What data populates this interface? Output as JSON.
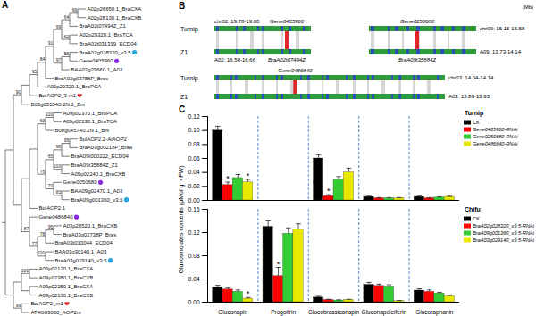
{
  "panel_labels": [
    "A",
    "B",
    "C"
  ],
  "tree": {
    "children": [
      {
        "children": [
          {
            "support": 90,
            "children": [
              {
                "children": [
                  {
                    "support": 95,
                    "children": [
                      {
                        "support": 84,
                        "children": [
                          {
                            "support": 91,
                            "children": [
                              {
                                "support": 99,
                                "children": [
                                  {
                                    "support": 64,
                                    "children": [
                                      {
                                        "support": 66,
                                        "children": [
                                          "A02p26650.1_BraCXA",
                                          "A02p28130.1_BraCXB"
                                        ]
                                      },
                                      "BraA02t07494Z_Z1"
                                    ]
                                  },
                                  {
                                    "support": 62,
                                    "children": [
                                      "A02p29320.1_BraTCA",
                                      "BraA02t031319_ECD04"
                                    ]
                                  }
                                ]
                              },
                              {
                                "support": 97,
                                "children": [
                                  {
                                    "support": 55,
                                    "children": [
                                      {
                                        "label": "BraA02g028320_v3.5",
                                        "marker": "circle",
                                        "color": "#29a3e0"
                                      },
                                      {
                                        "label": "Gene0405960",
                                        "marker": "circle",
                                        "color": "#8a2be2"
                                      }
                                    ]
                                  },
                                  "BAA02g29660.1_A03"
                                ]
                              }
                            ]
                          },
                          "BraA02g02786P_Bras"
                        ]
                      },
                      "A02p29320.1_BraPCA"
                    ]
                  },
                  {
                    "label": "BolAOP2_3-m1",
                    "marker": "heart",
                    "color": "#e0282c"
                  }
                ]
              },
              "B05g055540.2N.1_Bni"
            ]
          },
          {
            "children": [
              {
                "children": [
                  {
                    "children": [
                      {
                        "support": 63,
                        "children": [
                          {
                            "support": 100,
                            "children": [
                              "A09p02370.1_BraPCA",
                              "A09p02130.1_BraTCA"
                            ]
                          },
                          "B08g045740.2N.1_Bni"
                        ]
                      },
                      {
                        "support": 76,
                        "children": [
                          {
                            "support": 65,
                            "children": [
                              {
                                "support": 96,
                                "children": [
                                  {
                                    "support": 95,
                                    "children": [
                                      "BolAOP2.2-AtAOP2",
                                      "BraA09g00218P_Bras"
                                    ]
                                  },
                                  "BraA09t000222_ECD04"
                                ]
                              },
                              {
                                "support": 100,
                                "children": [
                                  "BraA09t35884Z_Z1",
                                  "A09p02240.1_BraCXB"
                                ]
                              }
                            ]
                          },
                          {
                            "support": 70,
                            "children": [
                              {
                                "label": "Gene0250680",
                                "marker": "circle",
                                "color": "#8a2be2"
                              },
                              {
                                "support": 83,
                                "children": [
                                  "BAA09g02470.1_A03",
                                  {
                                    "label": "BraA09g001360_v3.5",
                                    "marker": "circle",
                                    "color": "#29a3e0"
                                  }
                                ]
                              }
                            ]
                          }
                        ]
                      }
                    ]
                  },
                  "BolAOP2.1"
                ]
              },
              {
                "support": 87,
                "children": [
                  {
                    "label": "Gene0486840",
                    "marker": "circle",
                    "color": "#8a2be2"
                  },
                  {
                    "support": 77,
                    "children": [
                      {
                        "support": 78,
                        "children": [
                          {
                            "support": 95,
                            "children": [
                              "A03p28520.1_BraCXB",
                              "BraA03g02738P_Bras"
                            ]
                          },
                          "BraA03t010044_ECD04"
                        ]
                      },
                      {
                        "support": 100,
                        "children": [
                          "BAA03g30140.1_A03",
                          {
                            "label": "BraA03g029140_v3.5",
                            "marker": "circle",
                            "color": "#29a3e0"
                          }
                        ]
                      }
                    ]
                  }
                ]
              }
            ]
          }
        ]
      },
      {
        "children": [
          {
            "children": [
              {
                "support": 100,
                "children": [
                  "A09p02120.1_BraCXA",
                  "A09p02380.1_BraCXB"
                ]
              },
              {
                "children": [
                  "A09p02250.1_BraCXA",
                  "A09p02130.1_BraCXB"
                ]
              }
            ]
          },
          {
            "support": 99,
            "children": [
              {
                "label": "BolAOP2_m1",
                "marker": "heart",
                "color": "#e0282c"
              },
              "AT4G03060_AOP2m"
            ]
          }
        ]
      }
    ]
  },
  "synteny": {
    "unit": "(Mb)",
    "rows": [
      {
        "genome_labels": [
          "Turnip",
          "Z1"
        ],
        "blocks": [
          {
            "top_region": "chr02: 19.78-19.88",
            "top_gene": "Gene0405960",
            "bottom_region": "A02: 16.58-16.66",
            "bottom_gene": "BraA02t07494Z"
          },
          {
            "top_region": "chr09: 15.16-15.58",
            "top_gene": "Gene0250680",
            "bottom_region": "A09: 13.73-14.14",
            "bottom_gene": "BraA09t35884Z"
          }
        ]
      },
      {
        "genome_labels": [
          "Turnip",
          "Z1"
        ],
        "blocks": [
          {
            "top_region": "chr03: 14.04-14.14",
            "top_gene": "Gene0486840",
            "bottom_region": "A03: 13.89-13.93"
          }
        ]
      }
    ]
  },
  "chart_data": [
    {
      "type": "bar",
      "title": "Turnip",
      "y_label": "Glucosinolates contents (μMol g⁻¹ FW)",
      "categories": [
        "Gluconapin",
        "Progoitrin",
        "Glucobrassicanapin",
        "Gluconapoleiferin",
        "Glucoraphanin"
      ],
      "series": [
        {
          "name": "CK",
          "color": "#000000",
          "values": [
            0.1,
            0,
            0.06,
            0.005,
            0.005
          ],
          "errors": [
            0.006,
            0,
            0.005,
            0.001,
            0.001
          ]
        },
        {
          "name": "Gene0405960-RNAi",
          "color": "#ff0000",
          "values": [
            0.022,
            0,
            0.006,
            0.003,
            0.003
          ],
          "errors": [
            0.004,
            0,
            0.002,
            0.001,
            0.001
          ]
        },
        {
          "name": "Gene0250680-RNAi",
          "color": "#33cc33",
          "values": [
            0.032,
            0,
            0.03,
            0.003,
            0.004
          ],
          "errors": [
            0.005,
            0,
            0.004,
            0.001,
            0.001
          ]
        },
        {
          "name": "Gene0486840-RNAi",
          "color": "#e8e800",
          "values": [
            0.026,
            0,
            0.04,
            0.003,
            0.005
          ],
          "errors": [
            0.004,
            0,
            0.006,
            0.001,
            0.001
          ]
        }
      ],
      "ylim": [
        0,
        0.12
      ],
      "yticks": [
        {
          "value": 0,
          "label": "0.00"
        },
        {
          "value": 0.02,
          "label": "0.02"
        },
        {
          "value": 0.04,
          "label": "0.04"
        },
        {
          "value": 0.06,
          "label": "0.06"
        },
        {
          "value": 0.08,
          "label": "0.08"
        },
        {
          "value": 0.1,
          "label": "0.10"
        },
        {
          "value": 0.12,
          "label": "0.12"
        }
      ],
      "tick_labels": "y",
      "legend": "right",
      "annotations": [
        {
          "category": "Gluconapin",
          "series": "Gene0405960-RNAi",
          "text": "*"
        },
        {
          "category": "Gluconapin",
          "series": "Gene0486840-RNAi",
          "text": "*"
        },
        {
          "category": "Glucobrassicanapin",
          "series": "Gene0405960-RNAi",
          "text": "*"
        }
      ]
    },
    {
      "type": "bar",
      "title": "Chifu",
      "categories": [
        "Gluconapin",
        "Progoitrin",
        "Glucobrassicanapin",
        "Gluconapoleiferin",
        "Glucoraphanin"
      ],
      "series": [
        {
          "name": "CK",
          "color": "#000000",
          "values": [
            0.025,
            0.13,
            0.008,
            0.03,
            0.02
          ],
          "errors": [
            0.004,
            0.01,
            0.002,
            0.004,
            0.003
          ]
        },
        {
          "name": "BraA02g028320_v3.5-RNAi",
          "color": "#ff0000",
          "values": [
            0.022,
            0.045,
            0.004,
            0.028,
            0.018
          ],
          "errors": [
            0.003,
            0.015,
            0.001,
            0.003,
            0.003
          ]
        },
        {
          "name": "BraA09g001360_v3.5-RNAi",
          "color": "#33cc33",
          "values": [
            0.018,
            0.118,
            0.003,
            0.027,
            0.015
          ],
          "errors": [
            0.003,
            0.01,
            0.001,
            0.003,
            0.002
          ]
        },
        {
          "name": "BraA03g029140_v3.5-RNAi",
          "color": "#e8e800",
          "values": [
            0.006,
            0.125,
            0.004,
            0.002,
            0.01
          ],
          "errors": [
            0.002,
            0.01,
            0.001,
            0.001,
            0.002
          ]
        }
      ],
      "ylim": [
        0,
        0.16
      ],
      "yticks": [
        {
          "value": 0,
          "label": "0.00"
        },
        {
          "value": 0.04,
          "label": "0.04"
        },
        {
          "value": 0.08,
          "label": "0.08"
        },
        {
          "value": 0.12,
          "label": "0.12"
        },
        {
          "value": 0.16,
          "label": "0.16"
        }
      ],
      "legend": "right",
      "annotations": [
        {
          "category": "Progoitrin",
          "series": "BraA02g028320_v3.5-RNAi",
          "text": "*"
        },
        {
          "category": "Gluconapin",
          "series": "BraA03g029140_v3.5-RNAi",
          "text": "*"
        }
      ]
    }
  ]
}
